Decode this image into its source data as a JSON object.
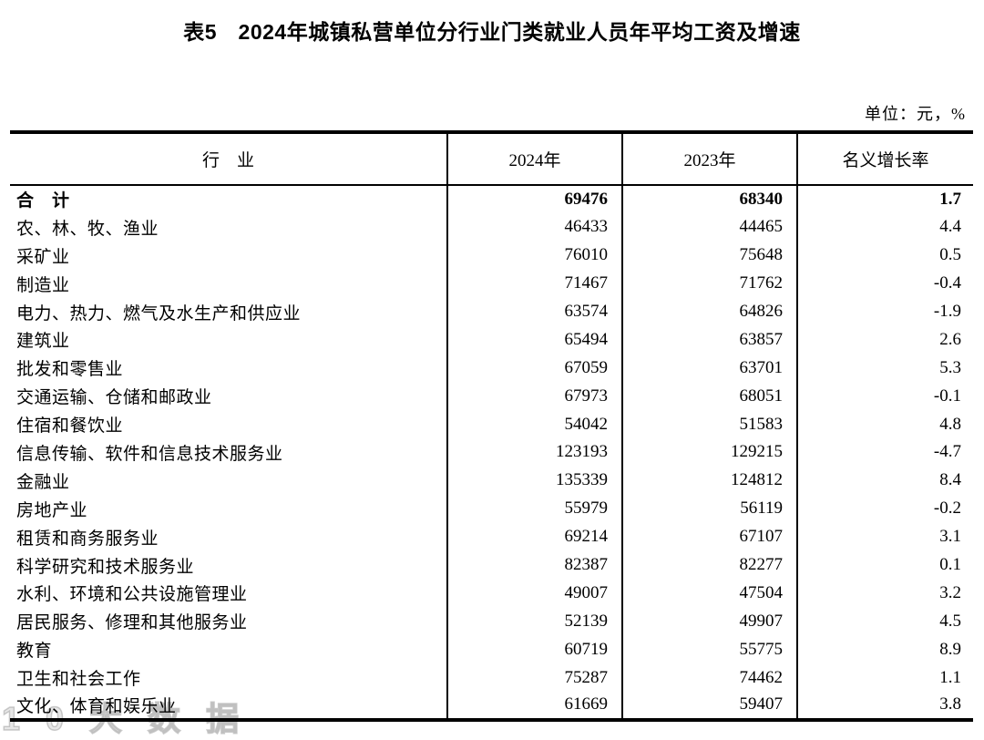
{
  "title": "表5　2024年城镇私营单位分行业门类就业人员年平均工资及增速",
  "unit_note": "单位：元，%",
  "watermark": "10大数据",
  "colors": {
    "text": "#000000",
    "border": "#000000",
    "background": "#ffffff"
  },
  "table": {
    "headers": [
      "行　业",
      "2024年",
      "2023年",
      "名义增长率"
    ],
    "rows": [
      {
        "industry": "合　计",
        "y2024": "69476",
        "y2023": "68340",
        "growth": "1.7",
        "bold": true
      },
      {
        "industry": "农、林、牧、渔业",
        "y2024": "46433",
        "y2023": "44465",
        "growth": "4.4",
        "bold": false
      },
      {
        "industry": "采矿业",
        "y2024": "76010",
        "y2023": "75648",
        "growth": "0.5",
        "bold": false
      },
      {
        "industry": "制造业",
        "y2024": "71467",
        "y2023": "71762",
        "growth": "-0.4",
        "bold": false
      },
      {
        "industry": "电力、热力、燃气及水生产和供应业",
        "y2024": "63574",
        "y2023": "64826",
        "growth": "-1.9",
        "bold": false
      },
      {
        "industry": "建筑业",
        "y2024": "65494",
        "y2023": "63857",
        "growth": "2.6",
        "bold": false
      },
      {
        "industry": "批发和零售业",
        "y2024": "67059",
        "y2023": "63701",
        "growth": "5.3",
        "bold": false
      },
      {
        "industry": "交通运输、仓储和邮政业",
        "y2024": "67973",
        "y2023": "68051",
        "growth": "-0.1",
        "bold": false
      },
      {
        "industry": "住宿和餐饮业",
        "y2024": "54042",
        "y2023": "51583",
        "growth": "4.8",
        "bold": false
      },
      {
        "industry": "信息传输、软件和信息技术服务业",
        "y2024": "123193",
        "y2023": "129215",
        "growth": "-4.7",
        "bold": false
      },
      {
        "industry": "金融业",
        "y2024": "135339",
        "y2023": "124812",
        "growth": "8.4",
        "bold": false
      },
      {
        "industry": "房地产业",
        "y2024": "55979",
        "y2023": "56119",
        "growth": "-0.2",
        "bold": false
      },
      {
        "industry": "租赁和商务服务业",
        "y2024": "69214",
        "y2023": "67107",
        "growth": "3.1",
        "bold": false
      },
      {
        "industry": "科学研究和技术服务业",
        "y2024": "82387",
        "y2023": "82277",
        "growth": "0.1",
        "bold": false
      },
      {
        "industry": "水利、环境和公共设施管理业",
        "y2024": "49007",
        "y2023": "47504",
        "growth": "3.2",
        "bold": false
      },
      {
        "industry": "居民服务、修理和其他服务业",
        "y2024": "52139",
        "y2023": "49907",
        "growth": "4.5",
        "bold": false
      },
      {
        "industry": "教育",
        "y2024": "60719",
        "y2023": "55775",
        "growth": "8.9",
        "bold": false
      },
      {
        "industry": "卫生和社会工作",
        "y2024": "75287",
        "y2023": "74462",
        "growth": "1.1",
        "bold": false
      },
      {
        "industry": "文化、体育和娱乐业",
        "y2024": "61669",
        "y2023": "59407",
        "growth": "3.8",
        "bold": false
      }
    ]
  }
}
